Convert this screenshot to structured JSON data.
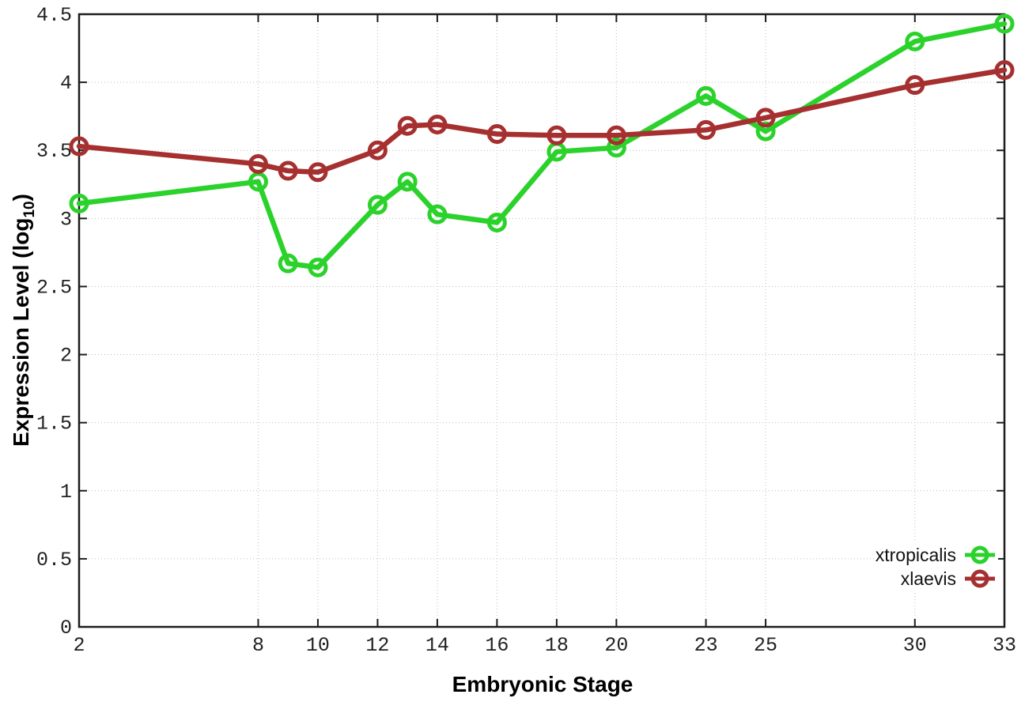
{
  "figure": {
    "xlabel": "Embryonic Stage",
    "ylabel_prefix": "Expression Level (log",
    "ylabel_sub": "10",
    "ylabel_suffix": ")",
    "background_color": "#ffffff",
    "axis_color": "#1c1c1c",
    "grid_color": "#bcbcbc"
  },
  "chart_data": {
    "type": "line",
    "title": "",
    "xlabel": "Embryonic Stage",
    "ylabel": "Expression Level (log10)",
    "xlim": [
      2,
      33
    ],
    "ylim": [
      0,
      4.5
    ],
    "grid": true,
    "legend_position": "bottom-right",
    "x": [
      2,
      8,
      9,
      10,
      12,
      13,
      14,
      16,
      18,
      20,
      23,
      25,
      30,
      33
    ],
    "series": [
      {
        "name": "xtropicalis",
        "color": "#2bd22b",
        "values": [
          3.11,
          3.27,
          2.67,
          2.64,
          3.1,
          3.27,
          3.03,
          2.97,
          3.49,
          3.52,
          3.9,
          3.64,
          4.3,
          4.43
        ]
      },
      {
        "name": "xlaevis",
        "color": "#a63030",
        "values": [
          3.53,
          3.4,
          3.35,
          3.34,
          3.5,
          3.68,
          3.69,
          3.62,
          3.61,
          3.61,
          3.65,
          3.74,
          3.98,
          4.09
        ]
      }
    ],
    "xticks": {
      "values": [
        2,
        8,
        10,
        12,
        14,
        16,
        18,
        20,
        23,
        25,
        30,
        33
      ],
      "labels": [
        "2",
        "8",
        "10",
        "12",
        "14",
        "16",
        "18",
        "20",
        "23",
        "25",
        "30",
        "33"
      ]
    },
    "yticks": {
      "values": [
        0,
        0.5,
        1,
        1.5,
        2,
        2.5,
        3,
        3.5,
        4,
        4.5
      ],
      "labels": [
        "0",
        "0.5",
        "1",
        "1.5",
        "2",
        "2.5",
        "3",
        "3.5",
        "4",
        "4.5"
      ]
    },
    "gridlines": {
      "x": [
        8,
        10,
        12,
        14,
        16,
        18,
        20,
        23,
        25,
        30
      ],
      "y": [
        0.5,
        1,
        1.5,
        2,
        2.5,
        3,
        3.5,
        4
      ]
    }
  }
}
